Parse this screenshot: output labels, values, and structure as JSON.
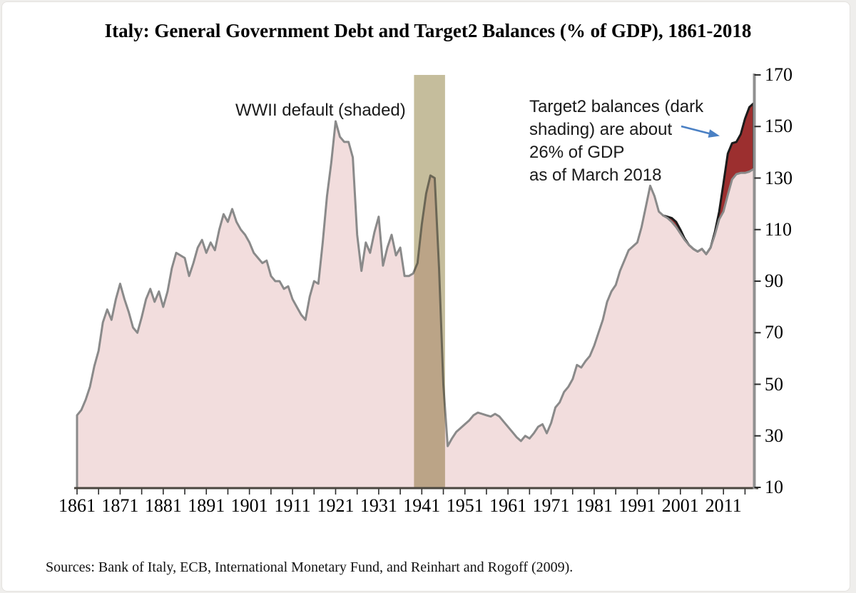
{
  "title": "Italy: General Government Debt and Target2 Balances (% of GDP), 1861-2018",
  "source_note": "Sources: Bank of Italy, ECB, International Monetary Fund, and Reinhart and Rogoff (2009).",
  "annotations": {
    "wwii": "WWII default  (shaded)",
    "target2": "Target2 balances (dark\nshading) are about\n 26% of GDP\nas of March 2018"
  },
  "colors": {
    "debt_fill": "#f2dddd",
    "debt_line": "#8a8a8a",
    "target2_fill": "#9c2f2f",
    "target2_line": "#1b1b1b",
    "band_fill": "#c5bd9c",
    "x_axis_line": "#4a463f",
    "y_axis_line": "#909090",
    "tick_color": "#2b2b2b",
    "arrow_color": "#4a80c4"
  },
  "chart_data": {
    "type": "area",
    "title": "Italy: General Government Debt and Target2 Balances (% of GDP), 1861-2018",
    "xlabel": "",
    "ylabel": "% of GDP",
    "x_range": [
      1861,
      2018
    ],
    "ylim": [
      10,
      170
    ],
    "y_ticks": [
      10,
      30,
      50,
      70,
      90,
      110,
      130,
      150,
      170
    ],
    "x_tick_labels": [
      1861,
      1871,
      1881,
      1891,
      1901,
      1911,
      1921,
      1931,
      1941,
      1951,
      1961,
      1971,
      1981,
      1991,
      2001,
      2011
    ],
    "x_minor_tick_step_years": 5,
    "y_axis_side": "right",
    "grid": false,
    "legend_position": "none",
    "shaded_band": {
      "label": "WWII default",
      "from": 1939.2,
      "to": 1946.4
    },
    "series": [
      {
        "name": "General government debt (% of GDP)",
        "start_year": 1861,
        "values": [
          38,
          40,
          44,
          49,
          57,
          63,
          74,
          79,
          75,
          83,
          89,
          83,
          78,
          72,
          70,
          76,
          83,
          87,
          82,
          86,
          80,
          86,
          95,
          101,
          100,
          99,
          92,
          97,
          103,
          106,
          101,
          105,
          102,
          110,
          116,
          113,
          118,
          113,
          110,
          108,
          105,
          101,
          99,
          97,
          98,
          92,
          90,
          90,
          87,
          88,
          83,
          80,
          77,
          75,
          84,
          90,
          89,
          105,
          123,
          136,
          152,
          146,
          144,
          144,
          138,
          108,
          94,
          105,
          101,
          109,
          115,
          96,
          103,
          108,
          100,
          103,
          92,
          92,
          93,
          97,
          112,
          124,
          131,
          130,
          95,
          50,
          26,
          29,
          31.5,
          33,
          34.5,
          36,
          38,
          39,
          38.5,
          38,
          37.5,
          38.5,
          37.5,
          35.5,
          33.5,
          31.5,
          29.5,
          28,
          30,
          29,
          31,
          33.5,
          34.5,
          31,
          35,
          41,
          43,
          47,
          49,
          52,
          57.5,
          56.5,
          59,
          61,
          65,
          70,
          75,
          82,
          86,
          88.5,
          94,
          98,
          102,
          103.5,
          105,
          111,
          119,
          127,
          123,
          117,
          115.5,
          114.5,
          113,
          111,
          108.5,
          106,
          104,
          102.5,
          101.5,
          102.5,
          100.5,
          103,
          108,
          114,
          117,
          123.5,
          129.5,
          131.5,
          132,
          132,
          132.5,
          133.5
        ]
      },
      {
        "name": "Debt plus Target2 balances (% of GDP)",
        "start_year": 1997,
        "values": [
          115.5,
          115,
          114.5,
          113,
          110,
          106.5,
          104,
          102.5,
          101.5,
          102.5,
          100.5,
          103,
          109,
          117,
          128,
          139.5,
          143.5,
          144,
          147,
          153,
          157.5,
          159
        ]
      }
    ],
    "annotations": [
      "WWII default  (shaded)",
      "Target2 balances (dark shading) are about 26% of GDP as of March 2018"
    ]
  }
}
